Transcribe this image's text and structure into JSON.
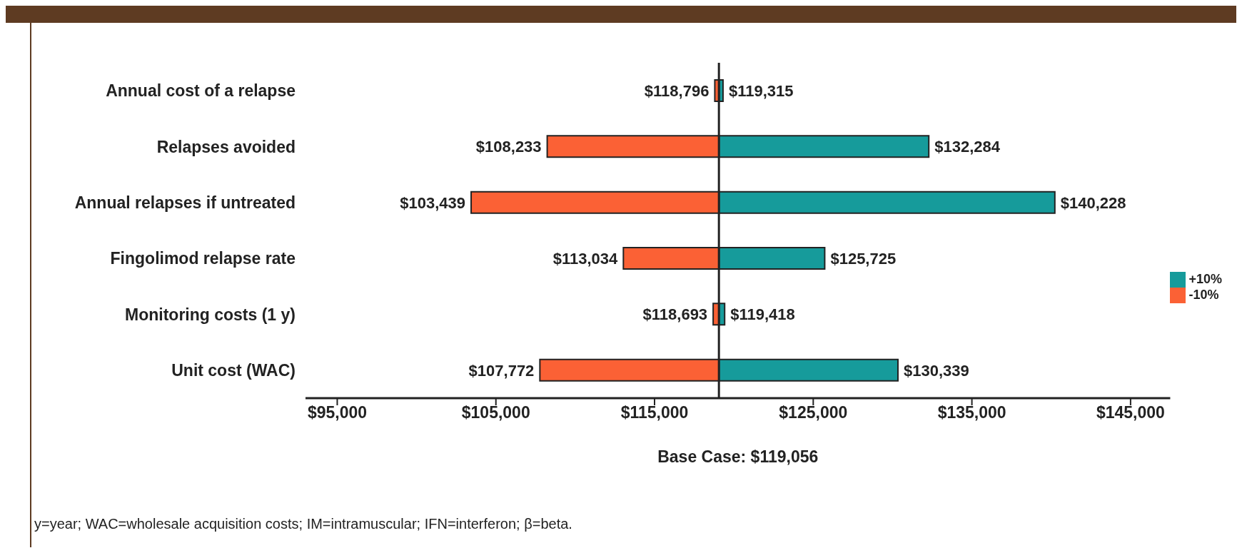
{
  "chart_data": {
    "type": "bar",
    "orientation": "horizontal",
    "xlabel": "Base Case: $119,056",
    "categories": [
      "Annual cost of a relapse",
      "Relapses avoided",
      "Annual relapses if untreated",
      "Fingolimod relapse rate",
      "Monitoring costs (1 y)",
      "Unit cost (WAC)"
    ],
    "series": [
      {
        "name": "+10%",
        "color": "#169b9b",
        "base": [
          119056,
          119056,
          119056,
          119056,
          119056,
          119056
        ],
        "values": [
          259,
          13228,
          21172,
          6669,
          362,
          11283
        ]
      },
      {
        "name": "-10%",
        "color": "#fb6135",
        "base": [
          118796,
          108233,
          103439,
          113034,
          118693,
          107772
        ],
        "values": [
          260,
          10823,
          15617,
          6022,
          363,
          11284
        ]
      }
    ],
    "xlim": [
      93000,
      147500
    ],
    "xticks": [
      {
        "value": 95000,
        "label": "$95,000"
      },
      {
        "value": 105000,
        "label": "$105,000"
      },
      {
        "value": 115000,
        "label": "$115,000"
      },
      {
        "value": 125000,
        "label": "$125,000"
      },
      {
        "value": 135000,
        "label": "$135,000"
      },
      {
        "value": 145000,
        "label": "$145,000"
      }
    ],
    "ref_lines": [
      {
        "axis": "x",
        "value": 119056,
        "label": null,
        "color": "#222222"
      }
    ],
    "grid": false,
    "legend": "right",
    "annotations": [
      {
        "text": "$119,315",
        "x": 119315,
        "y": "Annual cost of a relapse"
      },
      {
        "text": "$132,284",
        "x": 132284,
        "y": "Relapses avoided"
      },
      {
        "text": "$140,228",
        "x": 140228,
        "y": "Annual relapses if untreated"
      },
      {
        "text": "$125,725",
        "x": 125725,
        "y": "Fingolimod relapse rate"
      },
      {
        "text": "$119,418",
        "x": 119418,
        "y": "Monitoring costs (1 y)"
      },
      {
        "text": "$130,339",
        "x": 130339,
        "y": "Unit cost (WAC)"
      },
      {
        "text": "$118,796",
        "x": 118796,
        "y": "Annual cost of a relapse"
      },
      {
        "text": "$108,233",
        "x": 108233,
        "y": "Relapses avoided"
      },
      {
        "text": "$103,439",
        "x": 103439,
        "y": "Annual relapses if untreated"
      },
      {
        "text": "$113,034",
        "x": 113034,
        "y": "Fingolimod relapse rate"
      },
      {
        "text": "$118,693",
        "x": 118693,
        "y": "Monitoring costs (1 y)"
      },
      {
        "text": "$107,772",
        "x": 107772,
        "y": "Unit cost (WAC)"
      },
      "y=year; WAC=wholesale acquisition costs; IM=intramuscular; IFN=interferon; β=beta."
    ]
  }
}
